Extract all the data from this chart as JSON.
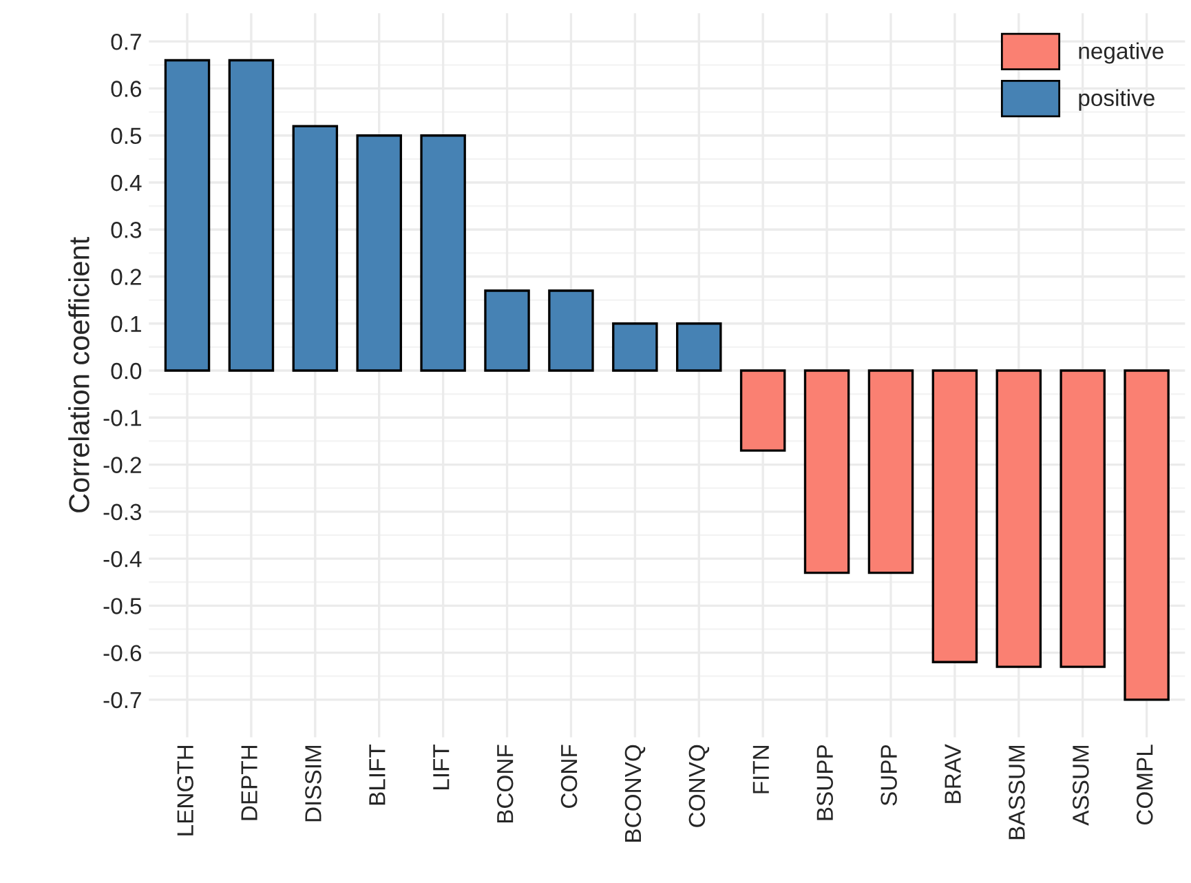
{
  "chart_data": {
    "type": "bar",
    "ylabel": "Correlation coefficient",
    "categories": [
      "LENGTH",
      "DEPTH",
      "DISSIM",
      "BLIFT",
      "LIFT",
      "BCONF",
      "CONF",
      "BCONVQ",
      "CONVQ",
      "FITN",
      "BSUPP",
      "SUPP",
      "BRAV",
      "BASSUM",
      "ASSUM",
      "COMPL"
    ],
    "series": [
      {
        "name": "negative",
        "color": "#fa8072",
        "values": [
          null,
          null,
          null,
          null,
          null,
          null,
          null,
          null,
          null,
          -0.17,
          -0.43,
          -0.43,
          -0.62,
          -0.63,
          -0.63,
          -0.7
        ]
      },
      {
        "name": "positive",
        "color": "#4682b4",
        "values": [
          0.66,
          0.66,
          0.52,
          0.5,
          0.5,
          0.17,
          0.17,
          0.1,
          0.1,
          null,
          null,
          null,
          null,
          null,
          null,
          null
        ]
      }
    ],
    "ylim": [
      -0.78,
      0.76
    ],
    "yticks": [
      -0.7,
      -0.6,
      -0.5,
      -0.4,
      -0.3,
      -0.2,
      -0.1,
      {
        "value": 0,
        "label": "0.0"
      },
      0.1,
      0.2,
      0.3,
      0.4,
      0.5,
      0.6,
      0.7
    ],
    "grid": true,
    "legend": "top right"
  }
}
